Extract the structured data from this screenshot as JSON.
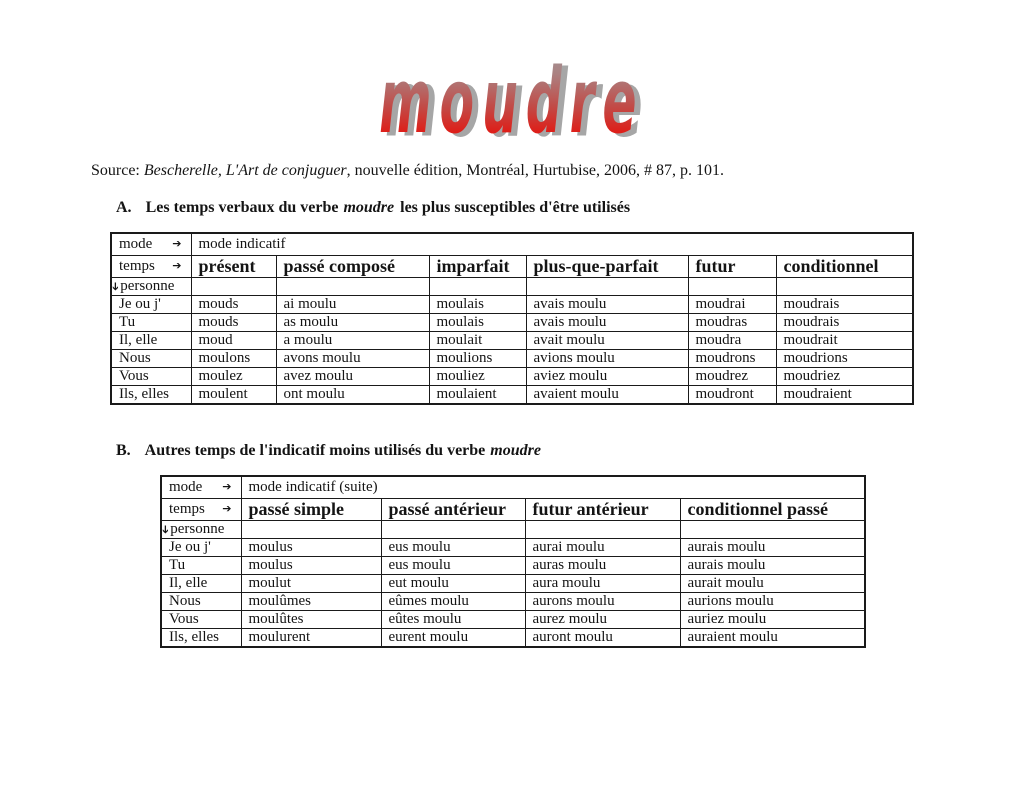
{
  "title": {
    "text": "moudre"
  },
  "icons": {
    "arrow_right": "➔"
  },
  "colors": {
    "title_red": "#e01b15",
    "title_gray_top": "#a29495",
    "shadow_gray": "#a6a6a6",
    "grid": "#1a1a1a"
  },
  "source": {
    "prefix": "Source: ",
    "work": "Bescherelle, L'Art de conjuguer",
    "rest": ", nouvelle édition, Montréal, Hurtubise, 2006, # 87, p. 101."
  },
  "section_a": {
    "label": "A.",
    "before": "Les temps verbaux du verbe",
    "verb": "moudre",
    "after": "les plus susceptibles d'être utilisés"
  },
  "section_b": {
    "label": "B.",
    "before": "Autres temps de l'indicatif moins utilisés du verbe",
    "verb": "moudre",
    "after": ""
  },
  "table_a": {
    "corner": {
      "mode": "mode",
      "temps": "temps",
      "personne": "personne"
    },
    "mode_title": "mode indicatif",
    "columns": [
      "présent",
      "passé composé",
      "imparfait",
      "plus-que-parfait",
      "futur",
      "conditionnel"
    ],
    "rows": [
      [
        "Je ou j'",
        "mouds",
        "ai moulu",
        "moulais",
        "avais moulu",
        "moudrai",
        "moudrais"
      ],
      [
        "Tu",
        "mouds",
        "as moulu",
        "moulais",
        "avais moulu",
        "moudras",
        "moudrais"
      ],
      [
        "Il, elle",
        "moud",
        "a moulu",
        "moulait",
        "avait moulu",
        "moudra",
        "moudrait"
      ],
      [
        "Nous",
        "moulons",
        "avons moulu",
        "moulions",
        "avions moulu",
        "moudrons",
        "moudrions"
      ],
      [
        "Vous",
        "moulez",
        "avez moulu",
        "mouliez",
        "aviez moulu",
        "moudrez",
        "moudriez"
      ],
      [
        "Ils, elles",
        "moulent",
        "ont moulu",
        "moulaient",
        "avaient moulu",
        "moudront",
        "moudraient"
      ]
    ]
  },
  "table_b": {
    "corner": {
      "mode": "mode",
      "temps": "temps",
      "personne": "personne"
    },
    "mode_title": "mode indicatif (suite)",
    "columns": [
      "passé simple",
      "passé antérieur",
      "futur antérieur",
      "conditionnel passé"
    ],
    "rows": [
      [
        "Je ou j'",
        "moulus",
        "eus moulu",
        "aurai moulu",
        "aurais moulu"
      ],
      [
        "Tu",
        "moulus",
        "eus moulu",
        "auras moulu",
        "aurais moulu"
      ],
      [
        "Il, elle",
        "moulut",
        "eut moulu",
        "aura moulu",
        "aurait moulu"
      ],
      [
        "Nous",
        "moulûmes",
        "eûmes moulu",
        "aurons moulu",
        "aurions moulu"
      ],
      [
        "Vous",
        "moulûtes",
        "eûtes moulu",
        "aurez moulu",
        "auriez moulu"
      ],
      [
        "Ils, elles",
        "moulurent",
        "eurent moulu",
        "auront moulu",
        "auraient moulu"
      ]
    ]
  }
}
